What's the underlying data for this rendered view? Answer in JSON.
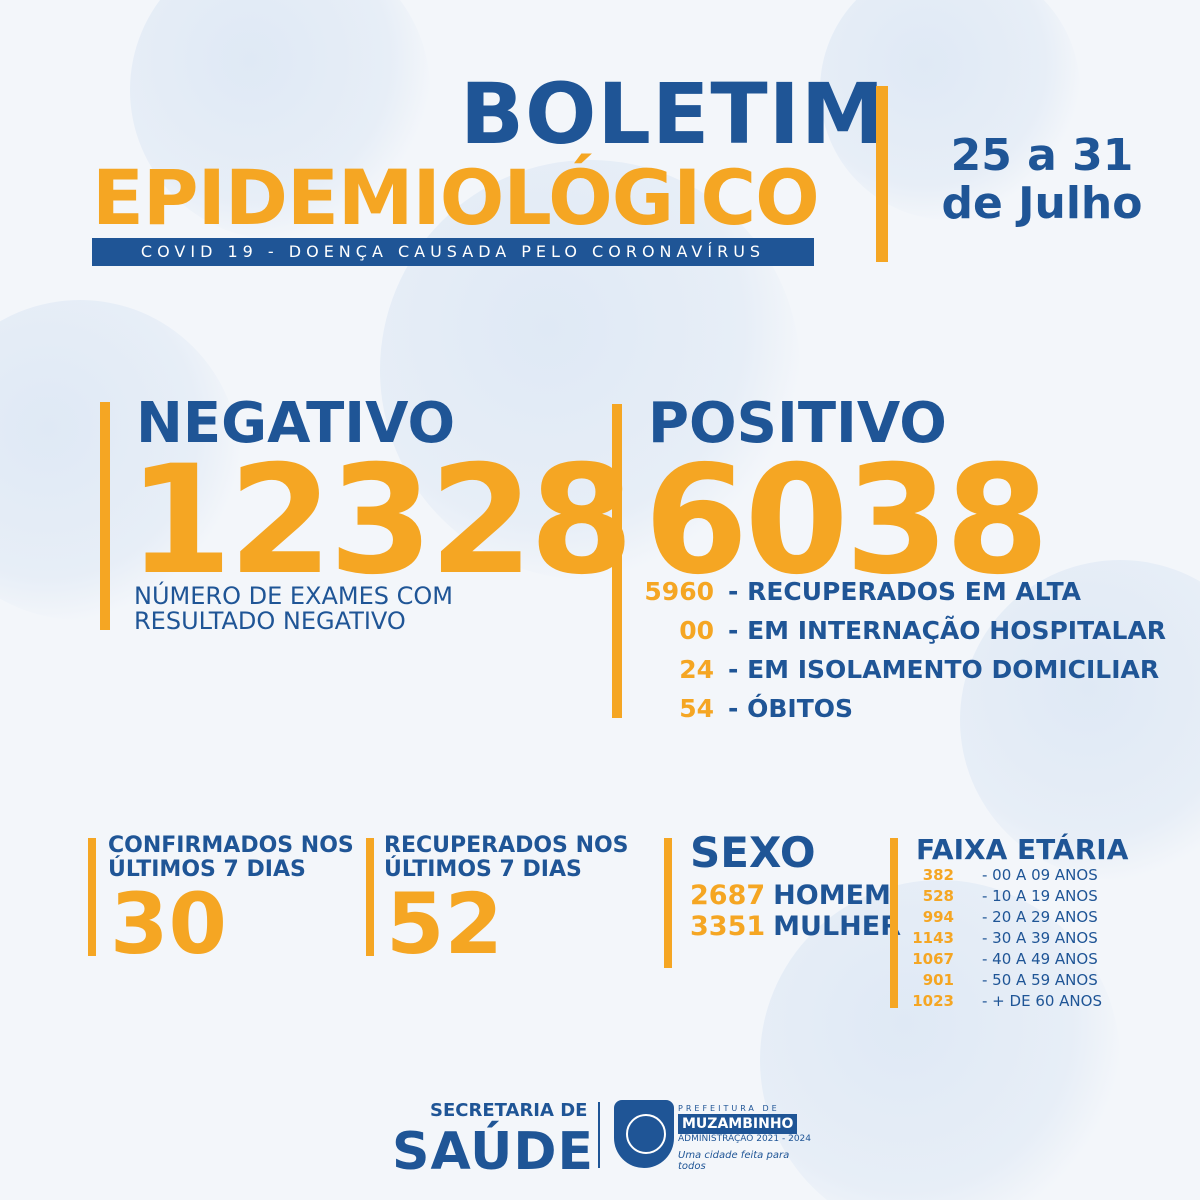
{
  "header": {
    "title_line1": "BOLETIM",
    "title_line2": "EPIDEMIOLÓGICO",
    "subtitle": "COVID 19 - DOENÇA CAUSADA PELO CORONAVÍRUS",
    "date_line1": "25 a 31",
    "date_line2": "de Julho"
  },
  "negativo": {
    "label": "NEGATIVO",
    "value": "12328",
    "desc_line1": "NÚMERO DE EXAMES COM",
    "desc_line2": "RESULTADO NEGATIVO"
  },
  "positivo": {
    "label": "POSITIVO",
    "value": "6038",
    "rows": [
      {
        "value": "5960",
        "label": "- RECUPERADOS EM ALTA"
      },
      {
        "value": "00",
        "label": "- EM INTERNAÇÃO HOSPITALAR"
      },
      {
        "value": "24",
        "label": "- EM ISOLAMENTO DOMICILIAR"
      },
      {
        "value": "54",
        "label": "- ÓBITOS"
      }
    ]
  },
  "confirmados": {
    "line1": "CONFIRMADOS NOS",
    "line2": "ÚLTIMOS 7 DIAS",
    "value": "30"
  },
  "recuperados": {
    "line1": "RECUPERADOS NOS",
    "line2": "ÚLTIMOS 7 DIAS",
    "value": "52"
  },
  "sexo": {
    "title": "SEXO",
    "rows": [
      {
        "value": "2687",
        "label": "HOMEM"
      },
      {
        "value": "3351",
        "label": "MULHER"
      }
    ]
  },
  "faixa": {
    "title": "FAIXA ETÁRIA",
    "rows": [
      {
        "value": "382",
        "label": "- 00 A 09 ANOS"
      },
      {
        "value": "528",
        "label": "- 10 A 19 ANOS"
      },
      {
        "value": "994",
        "label": "- 20 A 29 ANOS"
      },
      {
        "value": "1143",
        "label": "- 30 A 39 ANOS"
      },
      {
        "value": "1067",
        "label": "- 40 A 49 ANOS"
      },
      {
        "value": "901",
        "label": "- 50 A 59 ANOS"
      },
      {
        "value": "1023",
        "label": "- + DE 60 ANOS"
      }
    ]
  },
  "footer": {
    "sec_small": "SECRETARIA DE",
    "sec_big": "SAÚDE",
    "logo_top": "PREFEITURA DE",
    "logo_name": "MUZAMBINHO",
    "logo_adm": "ADMINISTRAÇÃO 2021 - 2024",
    "logo_slogan": "Uma cidade feita para todos"
  },
  "colors": {
    "blue": "#1f5596",
    "orange": "#f5a623",
    "background": "#f3f6fa"
  }
}
